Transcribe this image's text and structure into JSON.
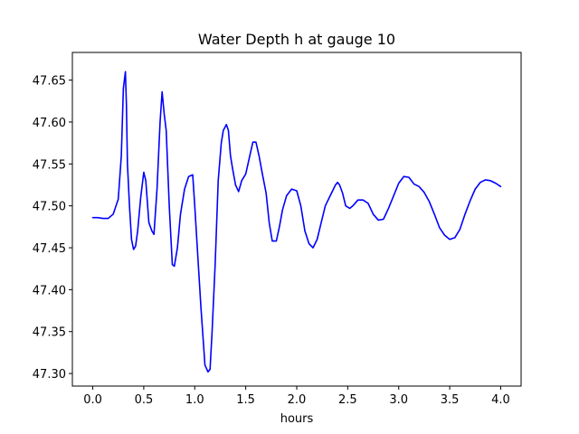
{
  "chart_data": {
    "type": "line",
    "title": "Water Depth h at gauge 10",
    "xlabel": "hours",
    "ylabel": "",
    "xlim": [
      -0.2,
      4.2
    ],
    "ylim": [
      47.285,
      47.683
    ],
    "grid": false,
    "xticks": [
      0.0,
      0.5,
      1.0,
      1.5,
      2.0,
      2.5,
      3.0,
      3.5,
      4.0
    ],
    "xtick_labels": [
      "0.0",
      "0.5",
      "1.0",
      "1.5",
      "2.0",
      "2.5",
      "3.0",
      "3.5",
      "4.0"
    ],
    "yticks": [
      47.3,
      47.35,
      47.4,
      47.45,
      47.5,
      47.55,
      47.6,
      47.65
    ],
    "ytick_labels": [
      "47.30",
      "47.35",
      "47.40",
      "47.45",
      "47.50",
      "47.55",
      "47.60",
      "47.65"
    ],
    "series": [
      {
        "color": "#0000ff",
        "x": [
          0.0,
          0.05,
          0.1,
          0.15,
          0.2,
          0.25,
          0.28,
          0.3,
          0.32,
          0.33,
          0.34,
          0.36,
          0.38,
          0.4,
          0.42,
          0.44,
          0.47,
          0.5,
          0.52,
          0.55,
          0.58,
          0.6,
          0.63,
          0.66,
          0.68,
          0.7,
          0.72,
          0.75,
          0.78,
          0.8,
          0.83,
          0.86,
          0.9,
          0.94,
          0.98,
          1.0,
          1.03,
          1.06,
          1.1,
          1.13,
          1.15,
          1.17,
          1.2,
          1.23,
          1.26,
          1.28,
          1.31,
          1.33,
          1.35,
          1.37,
          1.4,
          1.43,
          1.46,
          1.5,
          1.54,
          1.57,
          1.6,
          1.63,
          1.66,
          1.7,
          1.73,
          1.76,
          1.8,
          1.83,
          1.86,
          1.9,
          1.95,
          2.0,
          2.04,
          2.08,
          2.12,
          2.16,
          2.2,
          2.24,
          2.28,
          2.32,
          2.36,
          2.38,
          2.4,
          2.42,
          2.45,
          2.48,
          2.52,
          2.55,
          2.6,
          2.65,
          2.7,
          2.75,
          2.8,
          2.85,
          2.9,
          2.95,
          3.0,
          3.05,
          3.1,
          3.15,
          3.2,
          3.25,
          3.3,
          3.35,
          3.4,
          3.45,
          3.5,
          3.55,
          3.6,
          3.65,
          3.7,
          3.75,
          3.8,
          3.85,
          3.9,
          3.95,
          4.0
        ],
        "y": [
          47.486,
          47.486,
          47.485,
          47.485,
          47.49,
          47.508,
          47.56,
          47.64,
          47.66,
          47.62,
          47.55,
          47.5,
          47.46,
          47.448,
          47.452,
          47.47,
          47.51,
          47.54,
          47.53,
          47.48,
          47.47,
          47.466,
          47.52,
          47.6,
          47.636,
          47.61,
          47.59,
          47.5,
          47.43,
          47.428,
          47.45,
          47.49,
          47.52,
          47.535,
          47.537,
          47.5,
          47.44,
          47.38,
          47.31,
          47.302,
          47.305,
          47.35,
          47.43,
          47.53,
          47.575,
          47.59,
          47.597,
          47.59,
          47.56,
          47.545,
          47.525,
          47.517,
          47.53,
          47.538,
          47.56,
          47.576,
          47.576,
          47.56,
          47.54,
          47.515,
          47.48,
          47.458,
          47.458,
          47.475,
          47.495,
          47.512,
          47.52,
          47.518,
          47.5,
          47.47,
          47.455,
          47.45,
          47.46,
          47.48,
          47.5,
          47.51,
          47.52,
          47.525,
          47.528,
          47.525,
          47.515,
          47.5,
          47.497,
          47.5,
          47.507,
          47.507,
          47.503,
          47.49,
          47.483,
          47.484,
          47.497,
          47.512,
          47.527,
          47.535,
          47.534,
          47.526,
          47.523,
          47.516,
          47.505,
          47.49,
          47.474,
          47.465,
          47.46,
          47.462,
          47.472,
          47.49,
          47.506,
          47.52,
          47.528,
          47.531,
          47.53,
          47.527,
          47.523
        ]
      }
    ]
  }
}
